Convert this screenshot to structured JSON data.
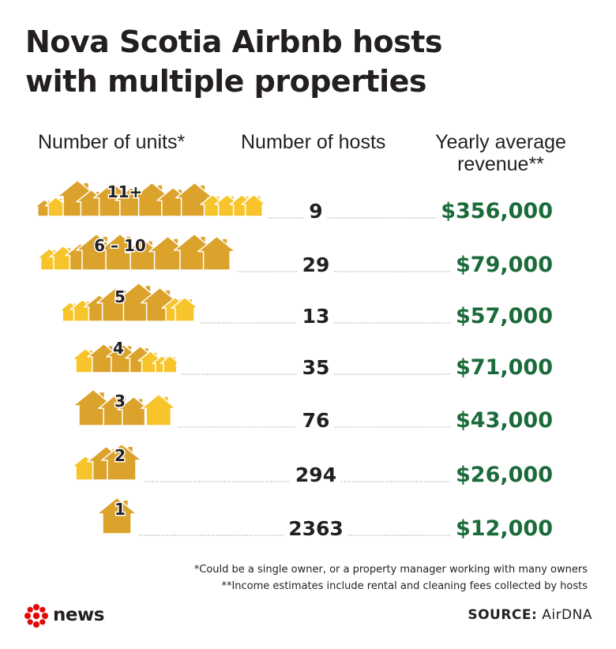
{
  "title_line1": "Nova Scotia Airbnb hosts",
  "title_line2": "with multiple properties",
  "headers": {
    "units": "Number of units*",
    "hosts": "Number of hosts",
    "revenue_line1": "Yearly average",
    "revenue_line2": "revenue**"
  },
  "chart_data": {
    "type": "table",
    "columns": [
      "Number of units*",
      "Number of hosts",
      "Yearly average revenue**"
    ],
    "rows": [
      {
        "units": "11+",
        "hosts": 9,
        "hosts_label": "9",
        "revenue": 356000,
        "revenue_label": "$356,000"
      },
      {
        "units": "6 – 10",
        "hosts": 29,
        "hosts_label": "29",
        "revenue": 79000,
        "revenue_label": "$79,000"
      },
      {
        "units": "5",
        "hosts": 13,
        "hosts_label": "13",
        "revenue": 57000,
        "revenue_label": "$57,000"
      },
      {
        "units": "4",
        "hosts": 35,
        "hosts_label": "35",
        "revenue": 71000,
        "revenue_label": "$71,000"
      },
      {
        "units": "3",
        "hosts": 76,
        "hosts_label": "76",
        "revenue": 43000,
        "revenue_label": "$43,000"
      },
      {
        "units": "2",
        "hosts": 294,
        "hosts_label": "294",
        "revenue": 26000,
        "revenue_label": "$26,000"
      },
      {
        "units": "1",
        "hosts": 2363,
        "hosts_label": "2363",
        "revenue": 12000,
        "revenue_label": "$12,000"
      }
    ]
  },
  "footnote1": "*Could be a single owner, or a property manager working with many owners",
  "footnote2": "**Income estimates include rental and cleaning fees collected by hosts",
  "logo_text": "news",
  "logo_icon": "cbc-gem-icon",
  "source_label": "SOURCE:",
  "source_value": "AirDNA",
  "colors": {
    "house_main": "#DBA32C",
    "house_light": "#F7C52B",
    "revenue": "#1B6B3A",
    "text": "#231F20",
    "logo_red": "#E60505",
    "dots": "#9A9A9A"
  }
}
